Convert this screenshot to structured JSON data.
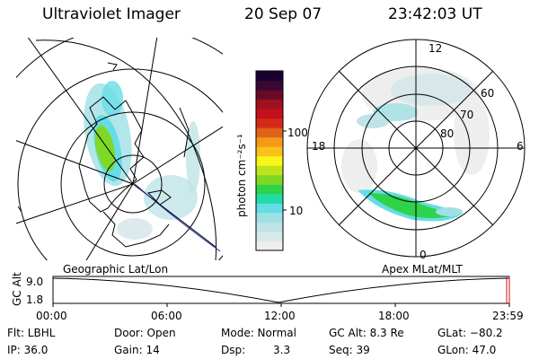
{
  "header": {
    "instrument": "Ultraviolet Imager",
    "date": "20 Sep 07",
    "time": "23:42:03 UT"
  },
  "colorbar": {
    "unit_label": "photon cm⁻²s⁻¹",
    "ticks": [
      "100",
      "10"
    ],
    "colors": [
      "#eeeeee",
      "#d8e8ea",
      "#bfe3e6",
      "#9fe0e5",
      "#66dde6",
      "#22dca8",
      "#2fd34a",
      "#7ed826",
      "#c0e31c",
      "#f7f81a",
      "#f8c21a",
      "#f59a16",
      "#e0621a",
      "#d32a18",
      "#c4101c",
      "#a0101e",
      "#6a0a26",
      "#3a0835",
      "#1a0030"
    ]
  },
  "left_map": {
    "label": "Geographic Lat/Lon"
  },
  "right_map": {
    "label": "Apex  MLat/MLT",
    "mlt_labels": {
      "top": "12",
      "left": "18",
      "right": "6",
      "bottom": "0"
    },
    "lat_labels": [
      "60",
      "70",
      "80"
    ]
  },
  "timeline": {
    "ylabel": "GC Alt",
    "yticks": [
      "9.0",
      "1.8"
    ],
    "xticks": [
      "00:00",
      "06:00",
      "12:00",
      "18:00",
      "23:59"
    ]
  },
  "status": {
    "flt": "Flt: LBHL",
    "door": "Door: Open",
    "mode": "Mode: Normal",
    "gcalt": "GC Alt: 8.3 Re",
    "glat": "GLat: −80.2",
    "ip": "IP: 36.0",
    "gain": "Gain: 14",
    "dsp_label": "Dsp:",
    "dsp_value": "3.3",
    "seq": "Seq: 39",
    "glon": "GLon:  47.0"
  }
}
